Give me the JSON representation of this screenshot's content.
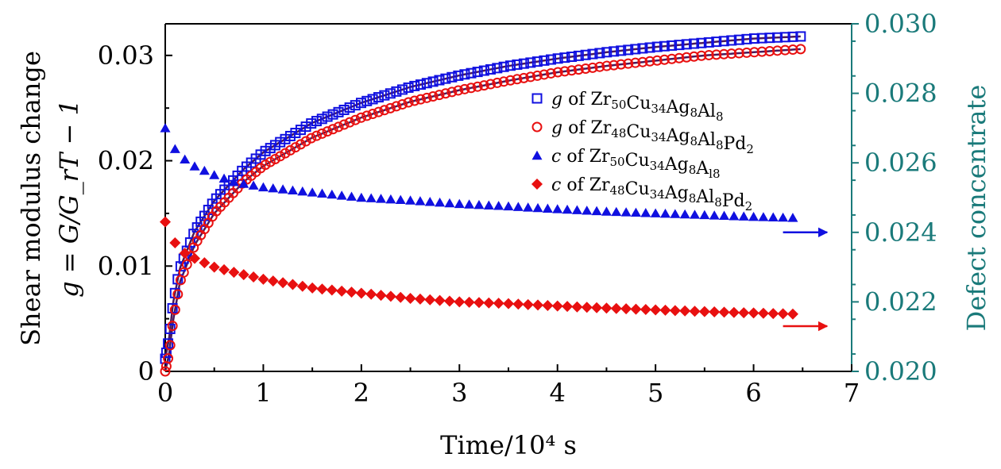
{
  "chart_data": {
    "type": "scatter",
    "title": "",
    "xlabel": "Time/10⁴ s",
    "ylabel_left_line1": "Shear modulus change",
    "ylabel_left_line2": "g = G/G_rT − 1",
    "ylabel_right": "Defect concentrate",
    "xlim": [
      0,
      7
    ],
    "ylim_left": [
      0,
      0.033
    ],
    "ylim_right": [
      0.02,
      0.03
    ],
    "x_ticks": [
      "0",
      "1",
      "2",
      "3",
      "4",
      "5",
      "6",
      "7"
    ],
    "y_left_ticks": [
      "0",
      "0.01",
      "0.02",
      "0.03"
    ],
    "y_right_ticks": [
      "0.020",
      "0.022",
      "0.024",
      "0.026",
      "0.028",
      "0.030"
    ],
    "legend_position": "top-right",
    "colors": {
      "blue": "#1010e0",
      "red": "#e81010",
      "fit": "#4a1a5a",
      "right_axis": "#1a7a7a"
    },
    "series": [
      {
        "name": "g of Zr50Cu34Ag8Al8",
        "legend_main": "g of Zr",
        "legend_parts": [
          [
            "Zr",
            "50"
          ],
          [
            "Cu",
            "34"
          ],
          [
            "Ag",
            "8"
          ],
          [
            "Al",
            "8"
          ]
        ],
        "axis": "left",
        "marker": "square-open",
        "color": "#1010e0",
        "x": [
          0.0,
          0.04,
          0.08,
          0.15,
          0.3,
          0.5,
          0.8,
          1.0,
          1.5,
          2.0,
          2.5,
          3.0,
          3.5,
          4.0,
          4.5,
          5.0,
          5.5,
          6.0,
          6.48
        ],
        "y": [
          0.0012,
          0.0032,
          0.0065,
          0.0098,
          0.0133,
          0.0162,
          0.0192,
          0.0208,
          0.0236,
          0.0255,
          0.027,
          0.0281,
          0.029,
          0.0297,
          0.0303,
          0.0308,
          0.0312,
          0.0316,
          0.0318
        ]
      },
      {
        "name": "g of Zr48Cu34Ag8Al8Pd2",
        "legend_main": "g of Zr",
        "legend_parts": [
          [
            "Zr",
            "48"
          ],
          [
            "Cu",
            "34"
          ],
          [
            "Ag",
            "8"
          ],
          [
            "Al",
            "8"
          ],
          [
            "Pd",
            "2"
          ]
        ],
        "axis": "left",
        "marker": "circle-open",
        "color": "#e81010",
        "x": [
          0.0,
          0.04,
          0.08,
          0.15,
          0.3,
          0.5,
          0.8,
          1.0,
          1.5,
          2.0,
          2.5,
          3.0,
          3.5,
          4.0,
          4.5,
          5.0,
          5.5,
          6.0,
          6.48
        ],
        "y": [
          0.0,
          0.0017,
          0.0048,
          0.0085,
          0.012,
          0.015,
          0.018,
          0.0195,
          0.0222,
          0.0241,
          0.0256,
          0.0267,
          0.0276,
          0.0284,
          0.029,
          0.0295,
          0.03,
          0.0303,
          0.0306
        ]
      },
      {
        "name": "c of Zr50Cu34Ag8Al8",
        "legend_main": "c of Zr",
        "legend_parts": [
          [
            "Zr",
            "50"
          ],
          [
            "Cu",
            "34"
          ],
          [
            "Ag",
            "8"
          ],
          [
            "A",
            "l8"
          ]
        ],
        "axis": "right",
        "marker": "triangle-filled",
        "color": "#1010e0",
        "x": [
          0.0,
          0.1,
          0.2,
          0.3,
          0.5,
          0.7,
          1.0,
          1.5,
          2.0,
          2.5,
          3.0,
          3.5,
          4.0,
          4.5,
          5.0,
          5.5,
          6.0,
          6.4
        ],
        "y": [
          0.027,
          0.0264,
          0.0261,
          0.0259,
          0.02565,
          0.02545,
          0.0253,
          0.02515,
          0.025,
          0.02492,
          0.02482,
          0.02475,
          0.02467,
          0.0246,
          0.02455,
          0.0245,
          0.02445,
          0.02442
        ]
      },
      {
        "name": "c of Zr48Cu34Ag8Al8Pd2",
        "legend_main": "c of Zr",
        "legend_parts": [
          [
            "Zr",
            "48"
          ],
          [
            "Cu",
            "34"
          ],
          [
            "Ag",
            "8"
          ],
          [
            "Al",
            "8"
          ],
          [
            "Pd",
            "2"
          ]
        ],
        "axis": "right",
        "marker": "diamond-filled",
        "color": "#e81010",
        "x": [
          0.0,
          0.1,
          0.2,
          0.3,
          0.5,
          0.7,
          1.0,
          1.5,
          2.0,
          2.5,
          3.0,
          3.5,
          4.0,
          4.5,
          5.0,
          5.5,
          6.0,
          6.4
        ],
        "y": [
          0.0243,
          0.0237,
          0.0234,
          0.02325,
          0.023,
          0.02285,
          0.02265,
          0.0224,
          0.02225,
          0.0221,
          0.022,
          0.02195,
          0.02188,
          0.02182,
          0.02177,
          0.02172,
          0.02168,
          0.02165
        ]
      }
    ],
    "annotations": [
      {
        "type": "arrow",
        "color": "#1010e0",
        "x_from": 6.3,
        "x_to": 6.75,
        "y_right": 0.024
      },
      {
        "type": "arrow",
        "color": "#e81010",
        "x_from": 6.3,
        "x_to": 6.75,
        "y_right": 0.0213
      }
    ]
  }
}
